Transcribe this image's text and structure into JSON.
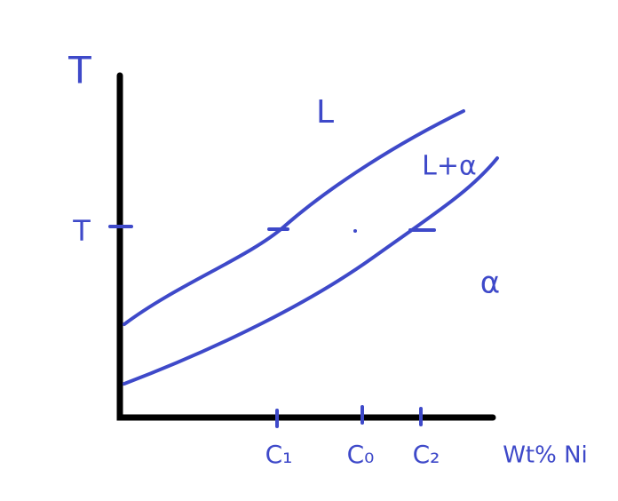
{
  "diagram": {
    "y_axis_label": "T",
    "x_axis_label": "Wt% Ni",
    "temperature_tick": "T",
    "regions": {
      "liquid": "L",
      "two_phase": "L+α",
      "solid": "α"
    },
    "x_ticks": [
      "C₁",
      "C₀",
      "C₂"
    ]
  }
}
